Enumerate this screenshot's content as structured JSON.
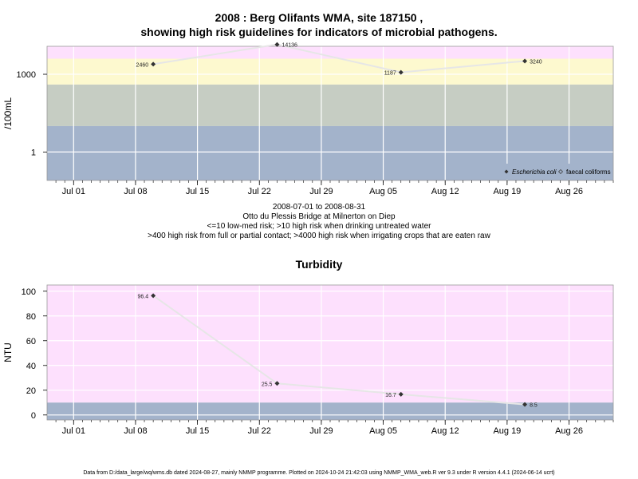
{
  "chart1": {
    "title_line1": "2008 : Berg Olifants WMA, site 187150 ,",
    "title_line2": "showing high risk guidelines for indicators of microbial pathogens.",
    "ylabel": "/100mL",
    "y_ticks": [
      "1000",
      "1"
    ],
    "sub_lines": [
      "2008-07-01 to 2008-08-31",
      "Otto du Plessis Bridge at Milnerton on Diep",
      "<=10 low-med risk; >10 high risk when drinking untreated water",
      ">400 high risk from full or partial contact; >4000 high risk when irrigating crops that are eaten raw"
    ],
    "legend": [
      "Escherichia coli",
      "faecal coliforms"
    ]
  },
  "chart2": {
    "title": "Turbidity",
    "ylabel": "NTU",
    "y_ticks": [
      "0",
      "20",
      "40",
      "60",
      "80",
      "100"
    ]
  },
  "x_ticks": [
    "Jul 01",
    "Jul 08",
    "Jul 15",
    "Jul 22",
    "Jul 29",
    "Aug 05",
    "Aug 12",
    "Aug 19",
    "Aug 26"
  ],
  "footer": "Data from D:/data_large/wq/wms.db dated 2024-08-27, mainly NMMP programme. Plotted on 2024-10-24 21:42:03 using NMMP_WMA_web.R ver 9.3 under R version 4.4.1 (2024-06-14 ucrt)",
  "colors": {
    "band_pink": "#fde0fd",
    "band_yellow": "#fdf9cf",
    "band_green": "#c6cdc3",
    "band_blue": "#a3b3cb",
    "line": "#e6e6e6",
    "point": "#333333"
  },
  "chart_data": [
    {
      "type": "line",
      "title": "2008 : Berg Olifants WMA, site 187150 , showing high risk guidelines for indicators of microbial pathogens.",
      "ylabel": "/100mL",
      "yscale": "log",
      "xlim": [
        "2008-06-28",
        "2008-08-31"
      ],
      "ylim": [
        0.08,
        12000
      ],
      "legend_position": "bottom-right",
      "grid": true,
      "series": [
        {
          "name": "Escherichia coli",
          "x": [
            "2008-07-10",
            "2008-07-24",
            "2008-08-07",
            "2008-08-21"
          ],
          "values": [
            2460,
            14136,
            1187,
            3240
          ],
          "labels": [
            "2460",
            "14136",
            "1187",
            "3240"
          ]
        }
      ]
    },
    {
      "type": "line",
      "title": "Turbidity",
      "ylabel": "NTU",
      "xlim": [
        "2008-06-28",
        "2008-08-31"
      ],
      "ylim": [
        -4,
        100
      ],
      "grid": true,
      "series": [
        {
          "x": [
            "2008-07-10",
            "2008-07-24",
            "2008-08-07",
            "2008-08-21"
          ],
          "values": [
            96.4,
            25.5,
            16.7,
            8.5
          ],
          "labels": [
            "96.4",
            "25.5",
            "16.7",
            "8.5"
          ]
        }
      ]
    }
  ]
}
